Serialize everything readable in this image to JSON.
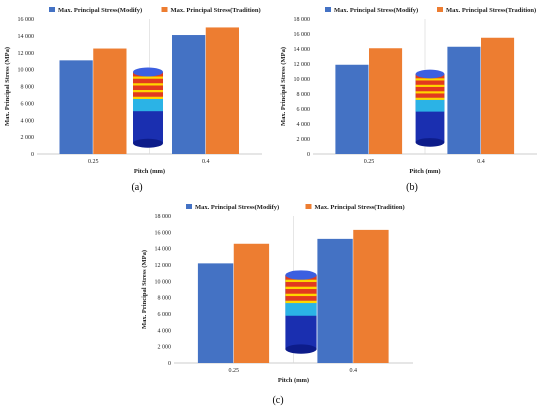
{
  "colors": {
    "modify": "#4472C4",
    "tradition": "#ED7D31"
  },
  "chart_data": [
    {
      "type": "bar",
      "panel_label": "(a)",
      "categories": [
        "0.25",
        "0.4"
      ],
      "series": [
        {
          "name": "Max. Principal Stress(Modify)",
          "values": [
            11100,
            14100
          ]
        },
        {
          "name": "Max. Principal Stress(Tradition)",
          "values": [
            12500,
            15000
          ]
        }
      ],
      "xlabel": "Pitch (mm)",
      "ylabel": "Max. Principal Stress (MPa)",
      "ylim": [
        0,
        16000
      ],
      "yticks": [
        "0",
        "2 000",
        "4 000",
        "6 000",
        "8 000",
        "10 000",
        "12 000",
        "14 000",
        "16 000"
      ],
      "legend": "top",
      "grid": false
    },
    {
      "type": "bar",
      "panel_label": "(b)",
      "categories": [
        "0.25",
        "0.4"
      ],
      "series": [
        {
          "name": "Max. Principal Stress(Modify)",
          "values": [
            11900,
            14300
          ]
        },
        {
          "name": "Max. Principal Stress(Tradition)",
          "values": [
            14100,
            15500
          ]
        }
      ],
      "xlabel": "Pitch (mm)",
      "ylabel": "Max. Principal Stress (MPa)",
      "ylim": [
        0,
        18000
      ],
      "yticks": [
        "0",
        "2 000",
        "4 000",
        "6 000",
        "8 000",
        "10 000",
        "12 000",
        "14 000",
        "16 000",
        "18 000"
      ],
      "legend": "top",
      "grid": false
    },
    {
      "type": "bar",
      "panel_label": "(c)",
      "categories": [
        "0.25",
        "0.4"
      ],
      "series": [
        {
          "name": "Max. Principal Stress(Modify)",
          "values": [
            12200,
            15200
          ]
        },
        {
          "name": "Max. Principal Stress(Tradition)",
          "values": [
            14600,
            16300
          ]
        }
      ],
      "xlabel": "Pitch (mm)",
      "ylabel": "Max. Principal Stress (MPa)",
      "ylim": [
        0,
        18000
      ],
      "yticks": [
        "0",
        "2 000",
        "4 000",
        "6 000",
        "8 000",
        "10 000",
        "12 000",
        "14 000",
        "16 000",
        "18 000"
      ],
      "legend": "top",
      "grid": false
    }
  ]
}
